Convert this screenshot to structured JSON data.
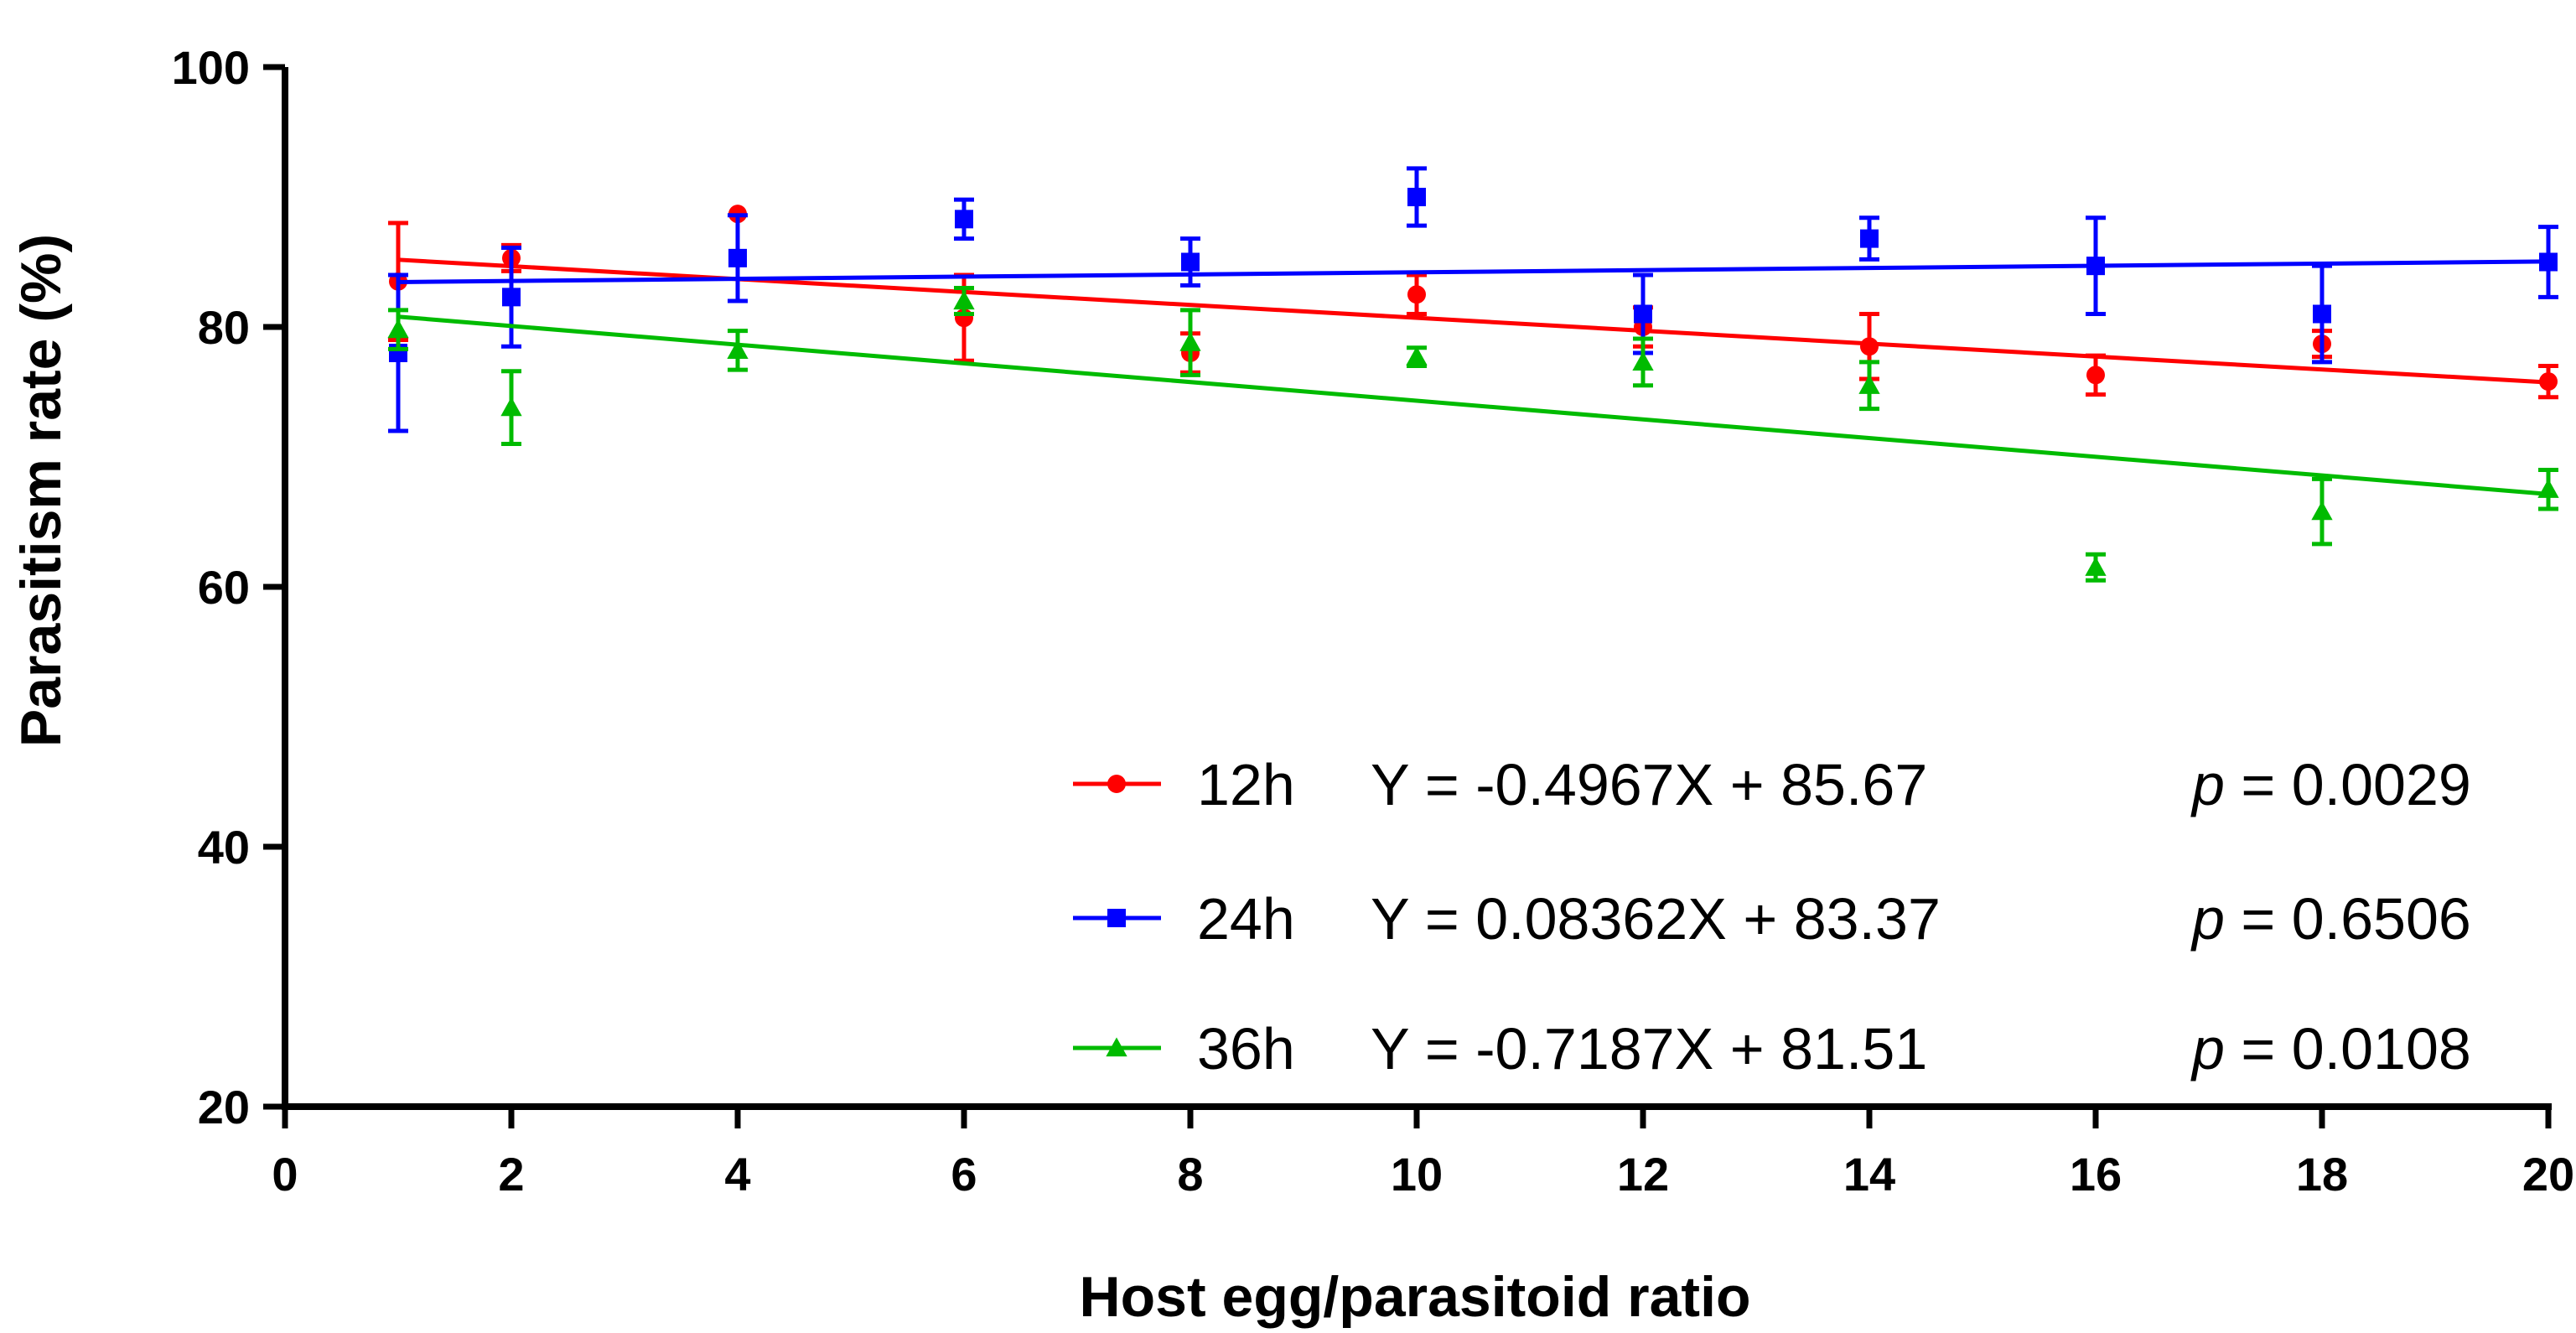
{
  "chart_data": {
    "type": "scatter",
    "title": "",
    "xlabel": "Host egg/parasitoid ratio",
    "ylabel": "Parasitism rate (%)",
    "xlim": [
      0,
      20
    ],
    "ylim": [
      20,
      100
    ],
    "x_ticks": [
      "0",
      "2",
      "4",
      "6",
      "8",
      "10",
      "12",
      "14",
      "16",
      "18",
      "20"
    ],
    "y_ticks": [
      "20",
      "40",
      "60",
      "80",
      "100"
    ],
    "legend_position": "bottom-right",
    "series": [
      {
        "name": "12h",
        "color": "#ff0000",
        "marker": "circle",
        "equation": "Y = -0.4967X + 85.67",
        "p_label": "p",
        "p_value": "= 0.0029",
        "fit": {
          "slope": -0.4967,
          "intercept": 85.67
        },
        "points": [
          {
            "x": 1,
            "y": 83.5,
            "err": 4.5
          },
          {
            "x": 2,
            "y": 85.3,
            "err": 1.0
          },
          {
            "x": 4,
            "y": 88.7,
            "err": 0
          },
          {
            "x": 6,
            "y": 80.7,
            "err": 3.3
          },
          {
            "x": 8,
            "y": 78.0,
            "err": 1.5
          },
          {
            "x": 10,
            "y": 82.5,
            "err": 1.5
          },
          {
            "x": 12,
            "y": 80.0,
            "err": 1.5
          },
          {
            "x": 14,
            "y": 78.5,
            "err": 2.5
          },
          {
            "x": 16,
            "y": 76.3,
            "err": 1.5
          },
          {
            "x": 18,
            "y": 78.7,
            "err": 1.0
          },
          {
            "x": 20,
            "y": 75.8,
            "err": 1.2
          }
        ]
      },
      {
        "name": "24h",
        "color": "#0000ff",
        "marker": "square",
        "equation": "Y = 0.08362X + 83.37",
        "p_label": "p",
        "p_value": "= 0.6506",
        "fit": {
          "slope": 0.08362,
          "intercept": 83.37
        },
        "points": [
          {
            "x": 1,
            "y": 78.0,
            "err": 6.0
          },
          {
            "x": 2,
            "y": 82.3,
            "err": 3.8
          },
          {
            "x": 4,
            "y": 85.3,
            "err": 3.3
          },
          {
            "x": 6,
            "y": 88.3,
            "err": 1.5
          },
          {
            "x": 8,
            "y": 85.0,
            "err": 1.8
          },
          {
            "x": 10,
            "y": 90.0,
            "err": 2.2
          },
          {
            "x": 12,
            "y": 81.0,
            "err": 3.0
          },
          {
            "x": 14,
            "y": 86.8,
            "err": 1.6
          },
          {
            "x": 16,
            "y": 84.7,
            "err": 3.7
          },
          {
            "x": 18,
            "y": 81.0,
            "err": 3.7
          },
          {
            "x": 20,
            "y": 85.0,
            "err": 2.7
          }
        ]
      },
      {
        "name": "36h",
        "color": "#00bb00",
        "marker": "triangle",
        "equation": "Y = -0.7187X + 81.51",
        "p_label": "p",
        "p_value": "= 0.0108",
        "fit": {
          "slope": -0.7187,
          "intercept": 81.51
        },
        "points": [
          {
            "x": 1,
            "y": 79.8,
            "err": 1.5
          },
          {
            "x": 2,
            "y": 73.8,
            "err": 2.8
          },
          {
            "x": 4,
            "y": 78.2,
            "err": 1.5
          },
          {
            "x": 6,
            "y": 82.0,
            "err": 1.0
          },
          {
            "x": 8,
            "y": 78.8,
            "err": 2.5
          },
          {
            "x": 10,
            "y": 77.7,
            "err": 0.7
          },
          {
            "x": 12,
            "y": 77.3,
            "err": 1.8
          },
          {
            "x": 14,
            "y": 75.5,
            "err": 1.8
          },
          {
            "x": 16,
            "y": 61.5,
            "err": 1.0
          },
          {
            "x": 18,
            "y": 65.8,
            "err": 2.5
          },
          {
            "x": 20,
            "y": 67.5,
            "err": 1.5
          }
        ]
      }
    ]
  }
}
